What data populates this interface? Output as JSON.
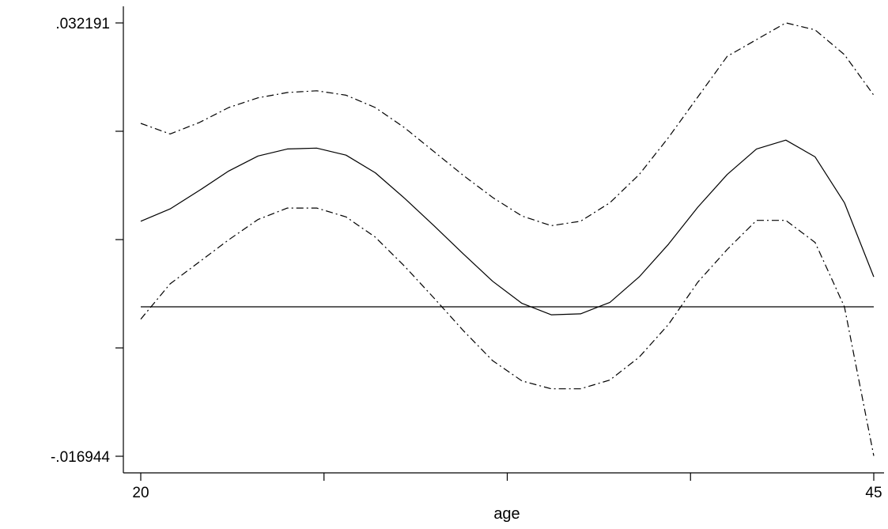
{
  "chart_data": {
    "type": "line",
    "title": "",
    "xlabel": "age",
    "ylabel": "",
    "xlim": [
      20,
      45
    ],
    "ylim": [
      -0.016944,
      0.032191
    ],
    "x_ticks": [
      20,
      26.25,
      32.5,
      38.75,
      45
    ],
    "x_tick_labels": [
      "20",
      "",
      "",
      "",
      "45"
    ],
    "y_ticks": [
      -0.016944,
      -0.00466,
      0.007624,
      0.019907,
      0.032191
    ],
    "y_tick_labels": [
      "-.016944",
      "",
      "",
      "",
      ".032191"
    ],
    "grid": false,
    "legend": null,
    "reference_line": 0,
    "x": [
      20,
      21,
      22,
      23,
      24,
      25,
      26,
      27,
      28,
      29,
      30,
      31,
      32,
      33,
      34,
      35,
      36,
      37,
      38,
      39,
      40,
      41,
      42,
      43,
      44,
      45
    ],
    "series": [
      {
        "style": "solid",
        "values": [
          0.0097,
          0.0111,
          0.0132,
          0.0154,
          0.0171,
          0.0179,
          0.018,
          0.0172,
          0.0152,
          0.0123,
          0.0092,
          0.006,
          0.0029,
          0.0004,
          -0.0009,
          -0.0008,
          0.0005,
          0.0034,
          0.0071,
          0.0113,
          0.015,
          0.0179,
          0.0189,
          0.017,
          0.0118,
          0.0034
        ]
      },
      {
        "style": "dash-dot",
        "values": [
          0.0208,
          0.0196,
          0.0209,
          0.0226,
          0.0237,
          0.0243,
          0.0245,
          0.024,
          0.0226,
          0.0203,
          0.0176,
          0.0149,
          0.0124,
          0.0103,
          0.0092,
          0.0097,
          0.0118,
          0.015,
          0.0192,
          0.0238,
          0.0284,
          0.0303,
          0.0322,
          0.0314,
          0.0286,
          0.024
        ]
      },
      {
        "style": "dash-dot",
        "values": [
          -0.0014,
          0.0026,
          0.0051,
          0.0076,
          0.0099,
          0.0112,
          0.0112,
          0.0102,
          0.0079,
          0.0046,
          0.001,
          -0.0027,
          -0.0061,
          -0.0084,
          -0.0093,
          -0.0093,
          -0.0083,
          -0.0057,
          -0.002,
          0.0028,
          0.0065,
          0.0098,
          0.0098,
          0.0073,
          0.0,
          -0.0169
        ]
      }
    ]
  }
}
